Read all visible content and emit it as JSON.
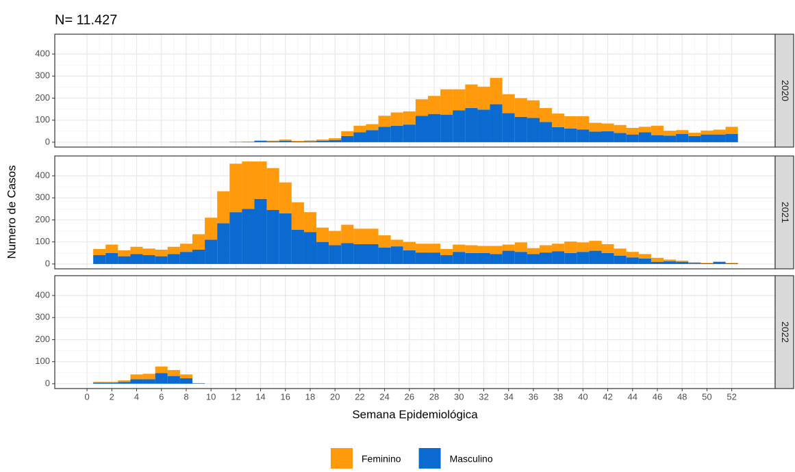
{
  "chart_data": {
    "type": "bar",
    "title": "N= 11.427",
    "x_label": "Semana Epidemiológica",
    "y_label": "Numero de Casos",
    "xlim": [
      -2.6,
      55.5
    ],
    "xticks": [
      0,
      2,
      4,
      6,
      8,
      10,
      12,
      14,
      16,
      18,
      20,
      22,
      24,
      26,
      28,
      30,
      32,
      34,
      36,
      38,
      40,
      42,
      44,
      46,
      48,
      50,
      52
    ],
    "ylim": [
      -22,
      490
    ],
    "yticks": [
      0,
      100,
      200,
      300,
      400
    ],
    "grid": true,
    "stacked": true,
    "legend": "bottom",
    "series": [
      {
        "name": "Masculino",
        "color": "#0a6ad0"
      },
      {
        "name": "Feminino",
        "color": "#fe9a0c"
      }
    ],
    "facets": [
      {
        "label": "2020",
        "x": [
          12,
          13,
          14,
          15,
          16,
          17,
          18,
          19,
          20,
          21,
          22,
          23,
          24,
          25,
          26,
          27,
          28,
          29,
          30,
          31,
          32,
          33,
          34,
          35,
          36,
          37,
          38,
          39,
          40,
          41,
          42,
          43,
          44,
          45,
          46,
          47,
          48,
          49,
          50,
          51,
          52
        ],
        "series": [
          {
            "values": [
              1,
              2,
              6,
              4,
              6,
              3,
              4,
              6,
              10,
              28,
              45,
              55,
              70,
              75,
              80,
              120,
              128,
              125,
              145,
              155,
              148,
              172,
              132,
              115,
              110,
              92,
              68,
              62,
              58,
              48,
              50,
              42,
              35,
              45,
              32,
              30,
              38,
              28,
              35,
              35,
              38
            ]
          },
          {
            "values": [
              1,
              1,
              2,
              3,
              6,
              3,
              4,
              6,
              8,
              22,
              30,
              27,
              50,
              60,
              60,
              75,
              82,
              115,
              95,
              107,
              104,
              120,
              86,
              85,
              80,
              63,
              62,
              56,
              60,
              40,
              35,
              36,
              30,
              25,
              43,
              22,
              17,
              15,
              18,
              22,
              32
            ]
          }
        ]
      },
      {
        "label": "2021",
        "x": [
          1,
          2,
          3,
          4,
          5,
          6,
          7,
          8,
          9,
          10,
          11,
          12,
          13,
          14,
          15,
          16,
          17,
          18,
          19,
          20,
          21,
          22,
          23,
          24,
          25,
          26,
          27,
          28,
          29,
          30,
          31,
          32,
          33,
          34,
          35,
          36,
          37,
          38,
          39,
          40,
          41,
          42,
          43,
          44,
          45,
          46,
          47,
          48,
          49,
          50,
          51,
          52
        ],
        "series": [
          {
            "values": [
              40,
              50,
              35,
              45,
              40,
              35,
              45,
              55,
              65,
              110,
              185,
              235,
              250,
              295,
              245,
              230,
              155,
              145,
              100,
              85,
              95,
              90,
              90,
              75,
              80,
              62,
              52,
              52,
              40,
              55,
              50,
              50,
              45,
              60,
              55,
              45,
              52,
              58,
              50,
              55,
              60,
              50,
              38,
              30,
              25,
              10,
              12,
              10,
              5,
              3,
              10,
              3
            ]
          },
          {
            "values": [
              28,
              38,
              27,
              33,
              30,
              30,
              33,
              37,
              70,
              100,
              145,
              220,
              215,
              170,
              190,
              140,
              125,
              90,
              65,
              65,
              83,
              70,
              70,
              55,
              30,
              38,
              40,
              40,
              28,
              33,
              35,
              32,
              37,
              28,
              43,
              27,
              33,
              34,
              52,
              43,
              45,
              40,
              32,
              25,
              20,
              18,
              8,
              5,
              3,
              2,
              0,
              2
            ]
          }
        ]
      },
      {
        "label": "2022",
        "x": [
          1,
          2,
          3,
          4,
          5,
          6,
          7,
          8,
          9
        ],
        "series": [
          {
            "values": [
              5,
              5,
              8,
              20,
              20,
              48,
              35,
              25,
              2
            ]
          },
          {
            "values": [
              3,
              3,
              7,
              22,
              25,
              30,
              27,
              17,
              1
            ]
          }
        ]
      }
    ]
  }
}
